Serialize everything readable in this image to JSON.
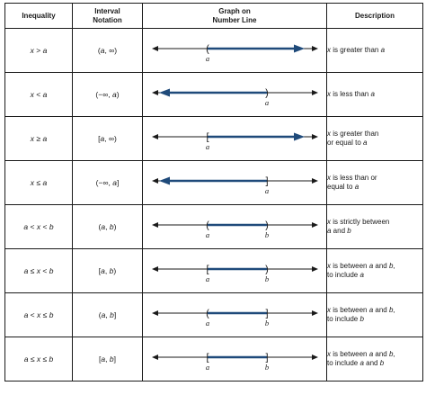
{
  "headers": {
    "inequality": "Inequality",
    "interval_line1": "Interval",
    "interval_line2": "Notation",
    "graph_line1": "Graph on",
    "graph_line2": "Number Line",
    "description": "Description"
  },
  "rows": [
    {
      "inequality": "x > a",
      "interval": "(a, ∞)",
      "description_line1": "x is greater than a",
      "description_line2": "",
      "graph": {
        "left_point": "a",
        "left_bracket": "(",
        "right_point": "",
        "right_bracket": "",
        "direction": "right"
      }
    },
    {
      "inequality": "x < a",
      "interval": "(−∞, a)",
      "description_line1": "x is less than a",
      "description_line2": "",
      "graph": {
        "left_point": "",
        "left_bracket": "",
        "right_point": "a",
        "right_bracket": ")",
        "direction": "left"
      }
    },
    {
      "inequality": "x ≥ a",
      "interval": "[a, ∞)",
      "description_line1": "x is greater than",
      "description_line2": "or equal to a",
      "graph": {
        "left_point": "a",
        "left_bracket": "[",
        "right_point": "",
        "right_bracket": "",
        "direction": "right"
      }
    },
    {
      "inequality": "x ≤ a",
      "interval": "(−∞, a]",
      "description_line1": "x is less than or",
      "description_line2": "equal to a",
      "graph": {
        "left_point": "",
        "left_bracket": "",
        "right_point": "a",
        "right_bracket": "]",
        "direction": "left"
      }
    },
    {
      "inequality": "a < x < b",
      "interval": "(a, b)",
      "description_line1": "x is strictly between",
      "description_line2": "a and b",
      "graph": {
        "left_point": "a",
        "left_bracket": "(",
        "right_point": "b",
        "right_bracket": ")",
        "direction": "between"
      }
    },
    {
      "inequality": "a ≤ x < b",
      "interval": "[a, b)",
      "description_line1": "x is between a and b,",
      "description_line2": "to include a",
      "graph": {
        "left_point": "a",
        "left_bracket": "[",
        "right_point": "b",
        "right_bracket": ")",
        "direction": "between"
      }
    },
    {
      "inequality": "a < x ≤ b",
      "interval": "(a, b]",
      "description_line1": "x is between a and b,",
      "description_line2": "to include b",
      "graph": {
        "left_point": "a",
        "left_bracket": "(",
        "right_point": "b",
        "right_bracket": "]",
        "direction": "between"
      }
    },
    {
      "inequality": "a ≤ x ≤ b",
      "interval": "[a, b]",
      "description_line1": "x is between a and b,",
      "description_line2": "to include a and b",
      "graph": {
        "left_point": "a",
        "left_bracket": "[",
        "right_point": "b",
        "right_bracket": "]",
        "direction": "between"
      }
    }
  ],
  "colors": {
    "interval_line": "#1f4a7a",
    "axis": "#1a1a1a"
  }
}
